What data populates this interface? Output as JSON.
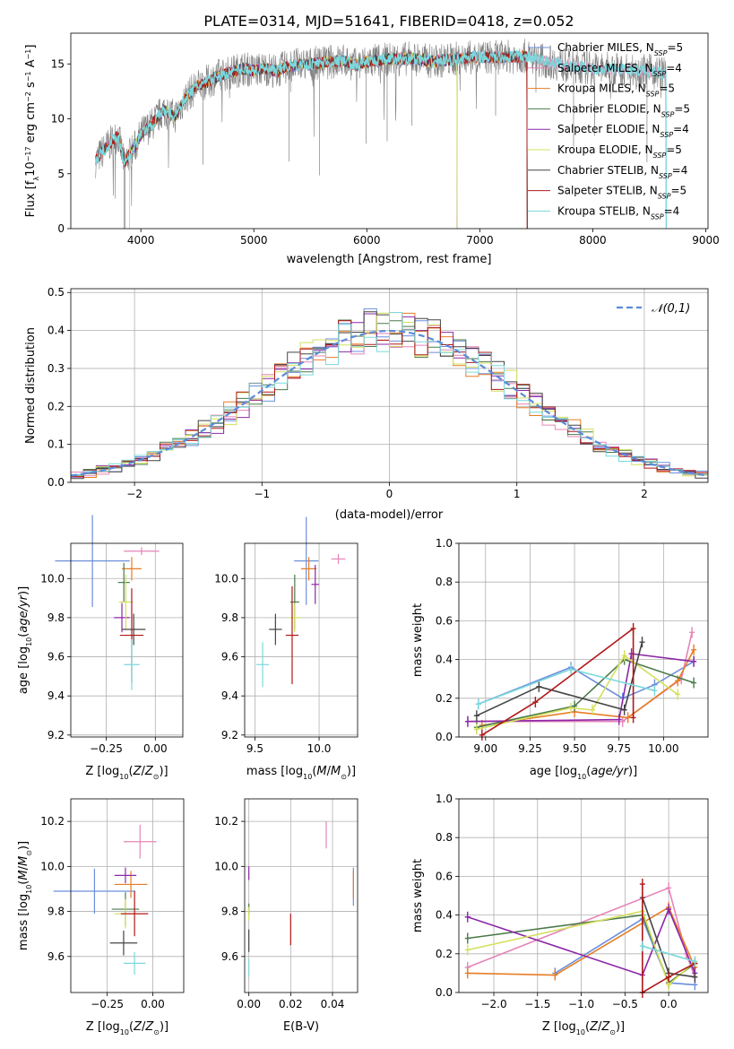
{
  "title": "PLATE=0314, MJD=51641, FIBERID=0418, z=0.052",
  "colors": [
    "#6b8fdc",
    "#e684b8",
    "#e67d26",
    "#4a7a4a",
    "#8c28a8",
    "#d4e05c",
    "#444444",
    "#b01818",
    "#7ad8dc"
  ],
  "legend_models": [
    {
      "label": "Chabrier MILES, N",
      "sub": "SSP",
      "tail": "=5"
    },
    {
      "label": "Salpeter MILES, N",
      "sub": "SSP",
      "tail": "=4"
    },
    {
      "label": "Kroupa MILES, N",
      "sub": "SSP",
      "tail": "=5"
    },
    {
      "label": "Chabrier ELODIE, N",
      "sub": "SSP",
      "tail": "=5"
    },
    {
      "label": "Salpeter ELODIE, N",
      "sub": "SSP",
      "tail": "=4"
    },
    {
      "label": "Kroupa ELODIE, N",
      "sub": "SSP",
      "tail": "=5"
    },
    {
      "label": "Chabrier STELIB, N",
      "sub": "SSP",
      "tail": "=4"
    },
    {
      "label": "Salpeter STELIB, N",
      "sub": "SSP",
      "tail": "=5"
    },
    {
      "label": "Kroupa STELIB, N",
      "sub": "SSP",
      "tail": "=4"
    }
  ],
  "chart_data": [
    {
      "id": "spectrum",
      "type": "line",
      "xlabel": "wavelength [Angstrom, rest frame]",
      "ylabel_parts": [
        "Flux [f",
        "λ",
        "10",
        "−17",
        " erg cm",
        "−2",
        " s",
        "−1",
        " A",
        "−1",
        "]"
      ],
      "xlim": [
        3380,
        9020
      ],
      "ylim": [
        0,
        17.8
      ],
      "xticks": [
        4000,
        5000,
        6000,
        7000,
        8000,
        9000
      ],
      "yticks": [
        0,
        5,
        10,
        15
      ],
      "continuum": [
        [
          3600,
          6.2
        ],
        [
          3700,
          7.5
        ],
        [
          3800,
          8.5
        ],
        [
          3850,
          6.0
        ],
        [
          3950,
          7.5
        ],
        [
          4000,
          8.6
        ],
        [
          4100,
          9.5
        ],
        [
          4200,
          10.8
        ],
        [
          4300,
          10.2
        ],
        [
          4400,
          12.0
        ],
        [
          4500,
          13.0
        ],
        [
          4600,
          13.4
        ],
        [
          4700,
          14.0
        ],
        [
          4800,
          14.2
        ],
        [
          4900,
          14.6
        ],
        [
          5000,
          14.4
        ],
        [
          5100,
          14.6
        ],
        [
          5200,
          14.3
        ],
        [
          5300,
          14.8
        ],
        [
          5400,
          14.9
        ],
        [
          5500,
          15.0
        ],
        [
          5600,
          15.1
        ],
        [
          5700,
          15.2
        ],
        [
          5800,
          15.3
        ],
        [
          5900,
          14.9
        ],
        [
          6000,
          15.2
        ],
        [
          6200,
          15.4
        ],
        [
          6400,
          15.5
        ],
        [
          6600,
          15.2
        ],
        [
          6800,
          15.5
        ],
        [
          7000,
          15.6
        ],
        [
          7200,
          15.6
        ],
        [
          7400,
          15.7
        ],
        [
          7600,
          15.2
        ],
        [
          7800,
          14.8
        ],
        [
          8000,
          14.6
        ],
        [
          8200,
          14.5
        ],
        [
          8400,
          14.4
        ],
        [
          8600,
          14.2
        ],
        [
          8650,
          14.0
        ]
      ],
      "model_ranges": [
        [
          3600,
          7420
        ],
        [
          3600,
          8650
        ],
        [
          3600,
          7420
        ],
        [
          3900,
          6800
        ],
        [
          3900,
          6800
        ],
        [
          3900,
          6800
        ],
        [
          3600,
          7420
        ],
        [
          3600,
          7420
        ],
        [
          3600,
          8650
        ]
      ]
    },
    {
      "id": "residuals",
      "type": "histogram",
      "xlabel": "(data-model)/error",
      "ylabel": "Normed distribution",
      "xlim": [
        -2.5,
        2.5
      ],
      "ylim": [
        0,
        0.51
      ],
      "xticks": [
        -2,
        -1,
        0,
        1,
        2
      ],
      "yticks": [
        0.0,
        0.1,
        0.2,
        0.3,
        0.4,
        0.5
      ],
      "legend": "𝒩(0,1)",
      "bin_width": 0.1
    },
    {
      "id": "Z_vs_age",
      "type": "errorbar",
      "xlabel": "Z [log10(Z/Z⊙)]",
      "ylabel": "age  [log10(age/yr)]",
      "xlim": [
        -0.43,
        0.14
      ],
      "ylim": [
        9.19,
        10.18
      ],
      "xticks": [
        -0.25,
        0.0
      ],
      "yticks": [
        9.2,
        9.4,
        9.6,
        9.8,
        10.0
      ],
      "points": [
        [
          -0.32,
          10.09,
          0.38,
          0.47
        ],
        [
          -0.07,
          10.14,
          0.18,
          0.04
        ],
        [
          -0.12,
          10.05,
          0.1,
          0.12
        ],
        [
          -0.16,
          9.98,
          0.06,
          0.2
        ],
        [
          -0.17,
          9.8,
          0.08,
          0.15
        ],
        [
          -0.15,
          9.88,
          0.07,
          0.28
        ],
        [
          -0.11,
          9.74,
          0.12,
          0.16
        ],
        [
          -0.12,
          9.71,
          0.12,
          0.48
        ],
        [
          -0.12,
          9.56,
          0.08,
          0.26
        ]
      ]
    },
    {
      "id": "mass_vs_age",
      "type": "errorbar",
      "xlabel": "mass [log10(M/M⊙)]",
      "ylabel": "",
      "xlim": [
        9.42,
        10.3
      ],
      "ylim": [
        9.19,
        10.18
      ],
      "xticks": [
        9.5,
        10.0
      ],
      "yticks": [
        9.2,
        9.4,
        9.6,
        9.8,
        10.0
      ],
      "points": [
        [
          9.9,
          10.09,
          0.19,
          0.45
        ],
        [
          10.15,
          10.1,
          0.11,
          0.05
        ],
        [
          9.92,
          10.05,
          0.12,
          0.12
        ],
        [
          9.81,
          9.88,
          0.07,
          0.28
        ],
        [
          9.97,
          9.97,
          0.06,
          0.2
        ],
        [
          9.81,
          9.8,
          0.09,
          0.15
        ],
        [
          9.66,
          9.74,
          0.1,
          0.16
        ],
        [
          9.79,
          9.71,
          0.1,
          0.5
        ],
        [
          9.56,
          9.56,
          0.1,
          0.23
        ]
      ]
    },
    {
      "id": "age_vs_mass_weight",
      "type": "line",
      "xlabel": "age  [log10(age/yr)]",
      "ylabel": "mass weight",
      "xlim": [
        8.85,
        10.25
      ],
      "ylim": [
        0,
        1.0
      ],
      "xticks": [
        9.0,
        9.25,
        9.5,
        9.75,
        10.0
      ],
      "yticks": [
        0.0,
        0.2,
        0.4,
        0.6,
        0.8,
        1.0
      ],
      "series": [
        {
          "points": [
            [
              8.96,
              0.17
            ],
            [
              9.48,
              0.36
            ],
            [
              9.77,
              0.2
            ],
            [
              9.95,
              0.27
            ],
            [
              10.17,
              0.39
            ]
          ]
        },
        {
          "points": [
            [
              8.9,
              0.08
            ],
            [
              9.77,
              0.08
            ],
            [
              10.1,
              0.3
            ],
            [
              10.16,
              0.54
            ]
          ]
        },
        {
          "points": [
            [
              8.98,
              0.06
            ],
            [
              9.5,
              0.13
            ],
            [
              9.8,
              0.1
            ],
            [
              10.08,
              0.29
            ],
            [
              10.17,
              0.45
            ]
          ]
        },
        {
          "points": [
            [
              8.95,
              0.05
            ],
            [
              9.5,
              0.16
            ],
            [
              9.78,
              0.4
            ],
            [
              10.17,
              0.28
            ]
          ]
        },
        {
          "points": [
            [
              8.9,
              0.08
            ],
            [
              9.75,
              0.09
            ],
            [
              9.82,
              0.43
            ],
            [
              10.17,
              0.39
            ]
          ]
        },
        {
          "points": [
            [
              8.95,
              0.04
            ],
            [
              9.48,
              0.15
            ],
            [
              9.6,
              0.14
            ],
            [
              9.78,
              0.42
            ],
            [
              10.08,
              0.22
            ]
          ]
        },
        {
          "points": [
            [
              8.95,
              0.11
            ],
            [
              9.3,
              0.26
            ],
            [
              9.78,
              0.14
            ],
            [
              9.88,
              0.49
            ]
          ]
        },
        {
          "points": [
            [
              8.98,
              0.01
            ],
            [
              9.28,
              0.18
            ],
            [
              9.83,
              0.56
            ],
            [
              9.83,
              0.1
            ]
          ]
        },
        {
          "points": [
            [
              8.96,
              0.17
            ],
            [
              9.48,
              0.35
            ],
            [
              9.95,
              0.24
            ]
          ]
        }
      ]
    },
    {
      "id": "Z_vs_mass",
      "type": "errorbar",
      "xlabel": "Z [log10(Z/Z⊙)]",
      "ylabel": "mass [log10(M/M⊙)]",
      "xlim": [
        -0.45,
        0.17
      ],
      "ylim": [
        9.44,
        10.3
      ],
      "xticks": [
        -0.25,
        0.0
      ],
      "yticks": [
        9.6,
        9.8,
        10.0,
        10.2
      ],
      "points": [
        [
          -0.32,
          9.89,
          0.45,
          0.2
        ],
        [
          -0.07,
          10.11,
          0.18,
          0.15
        ],
        [
          -0.12,
          9.92,
          0.18,
          0.12
        ],
        [
          -0.15,
          9.81,
          0.15,
          0.15
        ],
        [
          -0.15,
          9.96,
          0.12,
          0.07
        ],
        [
          -0.15,
          9.79,
          0.12,
          0.13
        ],
        [
          -0.16,
          9.66,
          0.15,
          0.11
        ],
        [
          -0.1,
          9.79,
          0.15,
          0.2
        ],
        [
          -0.1,
          9.57,
          0.12,
          0.1
        ]
      ]
    },
    {
      "id": "ebv_vs_mass",
      "type": "errorbar",
      "xlabel": "E(B-V)",
      "ylabel": "",
      "xlim": [
        -0.002,
        0.052
      ],
      "ylim": [
        9.44,
        10.3
      ],
      "xticks": [
        0.0,
        0.02,
        0.04
      ],
      "yticks": [
        9.6,
        9.8,
        10.0,
        10.2
      ],
      "points": [
        [
          0.05,
          9.91,
          0,
          0.17
        ],
        [
          0.037,
          10.14,
          0,
          0.12
        ],
        [
          0.05,
          9.92,
          0,
          0.12
        ],
        [
          0.0,
          9.81,
          0,
          0.05
        ],
        [
          0.0,
          9.97,
          0,
          0.06
        ],
        [
          0.0,
          9.79,
          0,
          0.06
        ],
        [
          0.0,
          9.67,
          0,
          0.1
        ],
        [
          0.02,
          9.72,
          0,
          0.14
        ],
        [
          0.0,
          9.55,
          0,
          0.08
        ]
      ]
    },
    {
      "id": "Z_vs_mass_weight",
      "type": "line",
      "xlabel": "Z [log10(Z/Z⊙)]",
      "ylabel": "mass weight",
      "xlim": [
        -2.4,
        0.45
      ],
      "ylim": [
        0,
        1.0
      ],
      "xticks": [
        -2.0,
        -1.5,
        -1.0,
        -0.5,
        0.0
      ],
      "yticks": [
        0.0,
        0.2,
        0.4,
        0.6,
        0.8,
        1.0
      ],
      "series": [
        {
          "points": [
            [
              -1.3,
              0.1
            ],
            [
              -0.3,
              0.38
            ],
            [
              0.0,
              0.05
            ],
            [
              0.3,
              0.04
            ]
          ]
        },
        {
          "points": [
            [
              -2.3,
              0.13
            ],
            [
              0.0,
              0.54
            ],
            [
              0.2,
              0.2
            ],
            [
              0.3,
              0.08
            ]
          ]
        },
        {
          "points": [
            [
              -2.3,
              0.1
            ],
            [
              -1.3,
              0.09
            ],
            [
              0.0,
              0.44
            ],
            [
              0.3,
              0.13
            ]
          ]
        },
        {
          "points": [
            [
              -2.3,
              0.28
            ],
            [
              -0.3,
              0.4
            ],
            [
              0.0,
              0.05
            ],
            [
              0.3,
              0.15
            ]
          ]
        },
        {
          "points": [
            [
              -2.3,
              0.39
            ],
            [
              -0.3,
              0.09
            ],
            [
              0.0,
              0.43
            ],
            [
              0.3,
              0.1
            ]
          ]
        },
        {
          "points": [
            [
              -2.3,
              0.22
            ],
            [
              -0.3,
              0.42
            ],
            [
              0.0,
              0.04
            ],
            [
              0.3,
              0.16
            ]
          ]
        },
        {
          "points": [
            [
              -0.3,
              0.49
            ],
            [
              0.0,
              0.1
            ],
            [
              0.3,
              0.08
            ]
          ]
        },
        {
          "points": [
            [
              -0.3,
              0.56
            ],
            [
              -0.3,
              0.0
            ],
            [
              0.0,
              0.08
            ],
            [
              0.3,
              0.15
            ]
          ]
        },
        {
          "points": [
            [
              -0.3,
              0.24
            ],
            [
              0.3,
              0.16
            ]
          ]
        }
      ]
    }
  ]
}
